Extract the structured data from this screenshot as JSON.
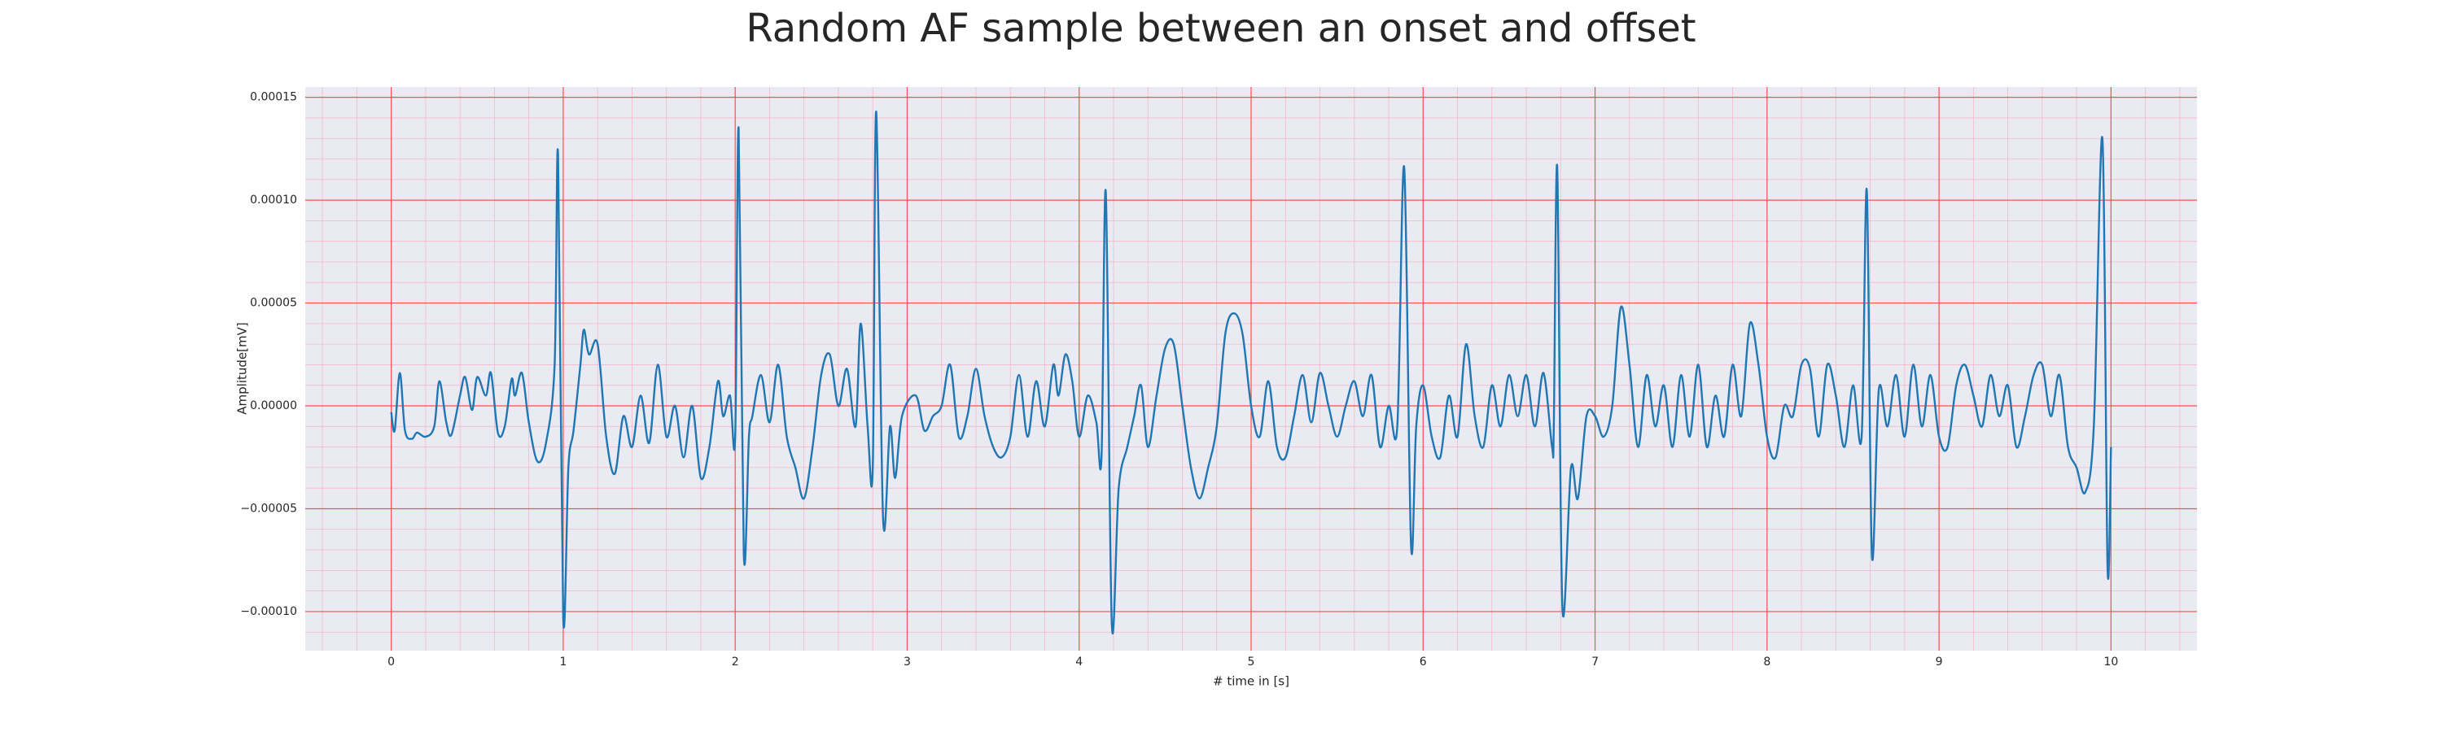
{
  "chart_data": {
    "type": "line",
    "title": "Random AF sample between an onset and offset",
    "xlabel": "# time in [s]",
    "ylabel": "Amplitude[mV]",
    "xlim": [
      -0.5,
      10.5
    ],
    "ylim": [
      -0.000119,
      0.000155
    ],
    "xticks": [
      0,
      1,
      2,
      3,
      4,
      5,
      6,
      7,
      8,
      9,
      10
    ],
    "yticks": [
      {
        "value": -0.0001,
        "label": "−0.00010"
      },
      {
        "value": -5e-05,
        "label": "−0.00005"
      },
      {
        "value": 0,
        "label": "0.00000"
      },
      {
        "value": 5e-05,
        "label": "0.00005"
      },
      {
        "value": 0.0001,
        "label": "0.00010"
      },
      {
        "value": 0.00015,
        "label": "0.00015"
      }
    ],
    "grid": true,
    "grid_color": "#ff4d4d",
    "minor_grid": {
      "x": 0.2,
      "y": 1e-05
    },
    "minor_grid_color": "#f5b8c8",
    "background": "#eaeaf2",
    "series": [
      {
        "color": "#1f77b4",
        "x": [
          0,
          0.02,
          0.05,
          0.08,
          0.12,
          0.15,
          0.2,
          0.25,
          0.28,
          0.32,
          0.35,
          0.4,
          0.43,
          0.47,
          0.5,
          0.55,
          0.58,
          0.62,
          0.66,
          0.7,
          0.72,
          0.76,
          0.8,
          0.85,
          0.9,
          0.95,
          0.97,
          1.0,
          1.03,
          1.06,
          1.1,
          1.12,
          1.15,
          1.2,
          1.25,
          1.3,
          1.35,
          1.4,
          1.45,
          1.5,
          1.55,
          1.6,
          1.65,
          1.7,
          1.75,
          1.8,
          1.85,
          1.9,
          1.93,
          1.97,
          2.0,
          2.02,
          2.05,
          2.08,
          2.1,
          2.15,
          2.2,
          2.25,
          2.3,
          2.35,
          2.4,
          2.45,
          2.5,
          2.55,
          2.6,
          2.65,
          2.7,
          2.73,
          2.77,
          2.8,
          2.82,
          2.86,
          2.9,
          2.93,
          2.97,
          3.05,
          3.1,
          3.15,
          3.2,
          3.25,
          3.3,
          3.35,
          3.4,
          3.45,
          3.5,
          3.55,
          3.6,
          3.65,
          3.7,
          3.75,
          3.8,
          3.85,
          3.88,
          3.92,
          3.96,
          4.0,
          4.05,
          4.1,
          4.13,
          4.155,
          4.19,
          4.23,
          4.28,
          4.32,
          4.36,
          4.4,
          4.45,
          4.5,
          4.55,
          4.6,
          4.65,
          4.7,
          4.75,
          4.8,
          4.85,
          4.9,
          4.95,
          5.0,
          5.05,
          5.1,
          5.15,
          5.2,
          5.25,
          5.3,
          5.35,
          5.4,
          5.45,
          5.5,
          5.55,
          5.6,
          5.65,
          5.7,
          5.75,
          5.8,
          5.85,
          5.89,
          5.93,
          5.96,
          6.0,
          6.05,
          6.1,
          6.15,
          6.2,
          6.25,
          6.3,
          6.35,
          6.4,
          6.45,
          6.5,
          6.55,
          6.6,
          6.65,
          6.7,
          6.75,
          6.76,
          6.78,
          6.81,
          6.86,
          6.9,
          6.95,
          7.0,
          7.05,
          7.1,
          7.15,
          7.2,
          7.25,
          7.3,
          7.35,
          7.4,
          7.45,
          7.5,
          7.55,
          7.6,
          7.65,
          7.7,
          7.75,
          7.8,
          7.85,
          7.9,
          7.95,
          8.0,
          8.05,
          8.1,
          8.15,
          8.2,
          8.25,
          8.3,
          8.35,
          8.4,
          8.45,
          8.5,
          8.55,
          8.58,
          8.61,
          8.65,
          8.7,
          8.75,
          8.8,
          8.85,
          8.9,
          8.95,
          9.0,
          9.05,
          9.1,
          9.15,
          9.2,
          9.25,
          9.3,
          9.35,
          9.4,
          9.45,
          9.5,
          9.55,
          9.6,
          9.65,
          9.7,
          9.75,
          9.8,
          9.85,
          9.9,
          9.95,
          9.98,
          10.0
        ],
        "values": [
          -3e-06,
          -1.2e-05,
          1.6e-05,
          -1.2e-05,
          -1.6e-05,
          -1.3e-05,
          -1.5e-05,
          -1e-05,
          1.2e-05,
          -8e-06,
          -1.4e-05,
          5e-06,
          1.4e-05,
          -2e-06,
          1.4e-05,
          5e-06,
          1.6e-05,
          -1.3e-05,
          -1e-05,
          1.3e-05,
          5e-06,
          1.6e-05,
          -8e-06,
          -2.7e-05,
          -1.8e-05,
          2e-05,
          0.000122,
          -0.000103,
          -3e-05,
          -1.2e-05,
          2e-05,
          3.7e-05,
          2.5e-05,
          3e-05,
          -1.5e-05,
          -3.3e-05,
          -5e-06,
          -2e-05,
          5e-06,
          -1.8e-05,
          2e-05,
          -1.5e-05,
          0,
          -2.5e-05,
          0,
          -3.5e-05,
          -2e-05,
          1.2e-05,
          -5e-06,
          5e-06,
          -1.5e-05,
          0.000135,
          -7.2e-05,
          -1.5e-05,
          -5e-06,
          1.5e-05,
          -8e-06,
          2e-05,
          -1.5e-05,
          -3e-05,
          -4.5e-05,
          -2e-05,
          1.5e-05,
          2.5e-05,
          0,
          1.8e-05,
          -1e-05,
          4e-05,
          -1e-05,
          -3e-05,
          0.000143,
          -5.5e-05,
          -1e-05,
          -3.5e-05,
          -5e-06,
          5e-06,
          -1.2e-05,
          -5e-06,
          0,
          2e-05,
          -1.5e-05,
          -5e-06,
          1.8e-05,
          -5e-06,
          -2e-05,
          -2.5e-05,
          -1.5e-05,
          1.5e-05,
          -1.5e-05,
          1.2e-05,
          -1e-05,
          2e-05,
          5e-06,
          2.5e-05,
          1.2e-05,
          -1.5e-05,
          5e-06,
          -8e-06,
          -2.5e-05,
          0.000104,
          -0.000106,
          -4e-05,
          -2e-05,
          -5e-06,
          1e-05,
          -2e-05,
          5e-06,
          2.8e-05,
          3e-05,
          0,
          -3e-05,
          -4.5e-05,
          -3e-05,
          -1e-05,
          3.5e-05,
          4.5e-05,
          3.5e-05,
          0,
          -1.5e-05,
          1.2e-05,
          -2e-05,
          -2.5e-05,
          -5e-06,
          1.5e-05,
          -8e-06,
          1.6e-05,
          0,
          -1.5e-05,
          0,
          1.2e-05,
          -5e-06,
          1.5e-05,
          -2e-05,
          0,
          -1e-05,
          0.000116,
          -6.8e-05,
          -1e-05,
          1e-05,
          -1.5e-05,
          -2.5e-05,
          5e-06,
          -1.5e-05,
          3e-05,
          -5e-06,
          -2e-05,
          1e-05,
          -1e-05,
          1.5e-05,
          -5e-06,
          1.5e-05,
          -1e-05,
          1.6e-05,
          -2e-05,
          -1e-05,
          0.000116,
          -9.8e-05,
          -3e-05,
          -4.5e-05,
          -5e-06,
          -5e-06,
          -1.5e-05,
          0,
          4.8e-05,
          2e-05,
          -2e-05,
          1.5e-05,
          -1e-05,
          1e-05,
          -2e-05,
          1.5e-05,
          -1.5e-05,
          2e-05,
          -2e-05,
          5e-06,
          -1.5e-05,
          2e-05,
          -5e-06,
          4e-05,
          2e-05,
          -1.5e-05,
          -2.5e-05,
          0,
          -5e-06,
          2e-05,
          1.8e-05,
          -1.5e-05,
          2e-05,
          5e-06,
          -2e-05,
          1e-05,
          -1.5e-05,
          0.000105,
          -7.3e-05,
          8e-06,
          -1e-05,
          1.5e-05,
          -1.5e-05,
          2e-05,
          -1e-05,
          1.5e-05,
          -1.5e-05,
          -2e-05,
          1e-05,
          2e-05,
          5e-06,
          -1e-05,
          1.5e-05,
          -5e-06,
          1e-05,
          -2e-05,
          -5e-06,
          1.5e-05,
          2e-05,
          -5e-06,
          1.5e-05,
          -2e-05,
          -3e-05,
          -4.2e-05,
          -1e-05,
          0.00013,
          -7.9e-05,
          -2e-05
        ]
      }
    ]
  }
}
